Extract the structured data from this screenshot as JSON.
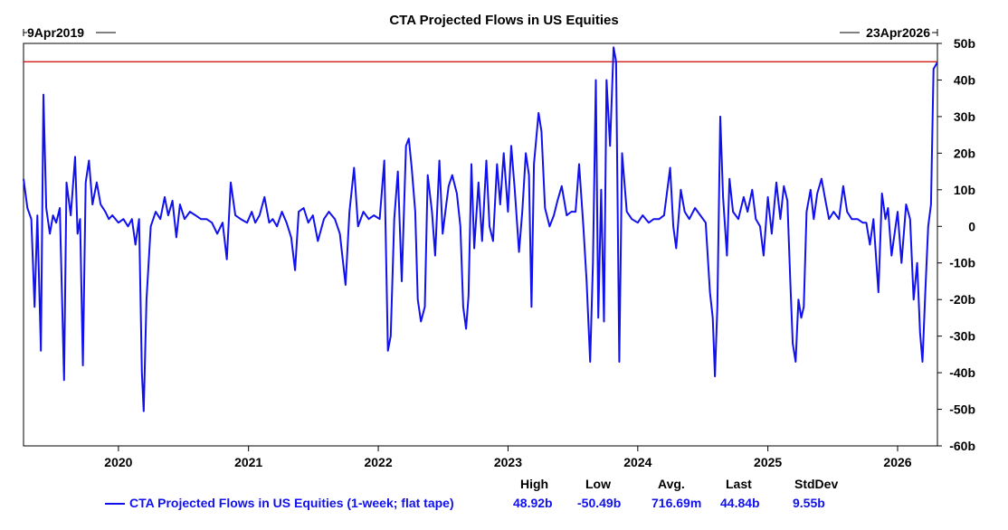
{
  "title": "CTA Projected Flows in US Equities",
  "range": {
    "start_label": "9Apr2019",
    "end_label": "23Apr2026"
  },
  "legend": {
    "label": "CTA Projected Flows in US Equities (1-week; flat tape)"
  },
  "stats": {
    "headers": [
      "High",
      "Low",
      "Avg.",
      "Last",
      "StdDev"
    ],
    "values": [
      "48.92b",
      "-50.49b",
      "716.69m",
      "44.84b",
      "9.55b"
    ]
  },
  "colors": {
    "series": "#1111ee",
    "reference_line": "#cc0000",
    "axis": "#000000"
  },
  "chart_data": {
    "type": "line",
    "title": "CTA Projected Flows in US Equities",
    "xlabel": "",
    "ylabel": "",
    "x_range": [
      "2019-04-09",
      "2026-04-23"
    ],
    "ylim": [
      -60,
      50
    ],
    "y_ticks": [
      -60,
      -50,
      -40,
      -30,
      -20,
      -10,
      0,
      10,
      20,
      30,
      40,
      50
    ],
    "y_tick_labels": [
      "-60b",
      "-50b",
      "-40b",
      "-30b",
      "-20b",
      "-10b",
      "0",
      "10b",
      "20b",
      "30b",
      "40b",
      "50b"
    ],
    "x_ticks": [
      "2020",
      "2021",
      "2022",
      "2023",
      "2024",
      "2025",
      "2026"
    ],
    "grid": false,
    "reference_line": 45,
    "series": [
      {
        "name": "CTA Projected Flows in US Equities (1-week; flat tape)",
        "values": [
          [
            "2019-04-09",
            13
          ],
          [
            "2019-04-20",
            5
          ],
          [
            "2019-05-01",
            2
          ],
          [
            "2019-05-10",
            -22
          ],
          [
            "2019-05-18",
            3
          ],
          [
            "2019-05-28",
            -34
          ],
          [
            "2019-06-04",
            36
          ],
          [
            "2019-06-12",
            5
          ],
          [
            "2019-06-22",
            -2
          ],
          [
            "2019-07-01",
            3
          ],
          [
            "2019-07-10",
            1
          ],
          [
            "2019-07-20",
            5
          ],
          [
            "2019-08-01",
            -42
          ],
          [
            "2019-08-08",
            12
          ],
          [
            "2019-08-20",
            3
          ],
          [
            "2019-09-01",
            19
          ],
          [
            "2019-09-08",
            -2
          ],
          [
            "2019-09-15",
            2
          ],
          [
            "2019-09-23",
            -38
          ],
          [
            "2019-10-01",
            12
          ],
          [
            "2019-10-10",
            18
          ],
          [
            "2019-10-20",
            6
          ],
          [
            "2019-11-01",
            12
          ],
          [
            "2019-11-12",
            6
          ],
          [
            "2019-11-25",
            4
          ],
          [
            "2019-12-05",
            2
          ],
          [
            "2019-12-15",
            3
          ],
          [
            "2020-01-01",
            1
          ],
          [
            "2020-01-15",
            2
          ],
          [
            "2020-01-28",
            0
          ],
          [
            "2020-02-08",
            2
          ],
          [
            "2020-02-18",
            -5
          ],
          [
            "2020-02-28",
            2
          ],
          [
            "2020-03-07",
            -40
          ],
          [
            "2020-03-12",
            -50.5
          ],
          [
            "2020-03-20",
            -20
          ],
          [
            "2020-04-01",
            0
          ],
          [
            "2020-04-15",
            4
          ],
          [
            "2020-04-28",
            2
          ],
          [
            "2020-05-10",
            8
          ],
          [
            "2020-05-20",
            3
          ],
          [
            "2020-06-01",
            7
          ],
          [
            "2020-06-12",
            -3
          ],
          [
            "2020-06-22",
            6
          ],
          [
            "2020-07-05",
            2
          ],
          [
            "2020-07-20",
            4
          ],
          [
            "2020-08-05",
            3
          ],
          [
            "2020-08-20",
            2
          ],
          [
            "2020-09-05",
            2
          ],
          [
            "2020-09-20",
            1
          ],
          [
            "2020-10-05",
            -2
          ],
          [
            "2020-10-20",
            1
          ],
          [
            "2020-11-01",
            -9
          ],
          [
            "2020-11-12",
            12
          ],
          [
            "2020-11-25",
            3
          ],
          [
            "2020-12-10",
            2
          ],
          [
            "2020-12-28",
            1
          ],
          [
            "2021-01-10",
            4
          ],
          [
            "2021-01-20",
            1
          ],
          [
            "2021-02-01",
            3
          ],
          [
            "2021-02-15",
            8
          ],
          [
            "2021-02-28",
            1
          ],
          [
            "2021-03-10",
            2
          ],
          [
            "2021-03-22",
            0
          ],
          [
            "2021-04-05",
            4
          ],
          [
            "2021-04-18",
            1
          ],
          [
            "2021-05-01",
            -3
          ],
          [
            "2021-05-12",
            -12
          ],
          [
            "2021-05-22",
            4
          ],
          [
            "2021-06-05",
            5
          ],
          [
            "2021-06-18",
            1
          ],
          [
            "2021-07-01",
            3
          ],
          [
            "2021-07-15",
            -4
          ],
          [
            "2021-08-01",
            2
          ],
          [
            "2021-08-15",
            4
          ],
          [
            "2021-09-01",
            2
          ],
          [
            "2021-09-15",
            -2
          ],
          [
            "2021-10-01",
            -16
          ],
          [
            "2021-10-12",
            4
          ],
          [
            "2021-10-25",
            16
          ],
          [
            "2021-11-05",
            0
          ],
          [
            "2021-11-20",
            4
          ],
          [
            "2021-12-05",
            2
          ],
          [
            "2021-12-20",
            3
          ],
          [
            "2022-01-05",
            2
          ],
          [
            "2022-01-18",
            18
          ],
          [
            "2022-01-28",
            -34
          ],
          [
            "2022-02-05",
            -30
          ],
          [
            "2022-02-15",
            2
          ],
          [
            "2022-02-25",
            15
          ],
          [
            "2022-03-08",
            -15
          ],
          [
            "2022-03-20",
            22
          ],
          [
            "2022-03-28",
            24
          ],
          [
            "2022-04-05",
            16
          ],
          [
            "2022-04-15",
            4
          ],
          [
            "2022-04-22",
            -20
          ],
          [
            "2022-05-01",
            -26
          ],
          [
            "2022-05-12",
            -22
          ],
          [
            "2022-05-20",
            14
          ],
          [
            "2022-06-01",
            4
          ],
          [
            "2022-06-10",
            -8
          ],
          [
            "2022-06-22",
            18
          ],
          [
            "2022-07-01",
            -2
          ],
          [
            "2022-07-10",
            5
          ],
          [
            "2022-07-18",
            11
          ],
          [
            "2022-07-28",
            14
          ],
          [
            "2022-08-10",
            9
          ],
          [
            "2022-08-20",
            0
          ],
          [
            "2022-08-28",
            -22
          ],
          [
            "2022-09-05",
            -28
          ],
          [
            "2022-09-12",
            -19
          ],
          [
            "2022-09-20",
            17
          ],
          [
            "2022-09-28",
            -6
          ],
          [
            "2022-10-10",
            12
          ],
          [
            "2022-10-20",
            -4
          ],
          [
            "2022-11-01",
            18
          ],
          [
            "2022-11-10",
            0
          ],
          [
            "2022-11-20",
            -4
          ],
          [
            "2022-12-01",
            17
          ],
          [
            "2022-12-10",
            6
          ],
          [
            "2022-12-20",
            20
          ],
          [
            "2023-01-01",
            4
          ],
          [
            "2023-01-10",
            22
          ],
          [
            "2023-01-20",
            10
          ],
          [
            "2023-02-01",
            -7
          ],
          [
            "2023-02-10",
            4
          ],
          [
            "2023-02-20",
            20
          ],
          [
            "2023-03-01",
            14
          ],
          [
            "2023-03-08",
            -22
          ],
          [
            "2023-03-15",
            17
          ],
          [
            "2023-03-28",
            31
          ],
          [
            "2023-04-05",
            26
          ],
          [
            "2023-04-15",
            5
          ],
          [
            "2023-04-28",
            0
          ],
          [
            "2023-05-10",
            3
          ],
          [
            "2023-05-20",
            7
          ],
          [
            "2023-06-01",
            11
          ],
          [
            "2023-06-15",
            3
          ],
          [
            "2023-06-28",
            4
          ],
          [
            "2023-07-10",
            4
          ],
          [
            "2023-07-20",
            17
          ],
          [
            "2023-08-01",
            0
          ],
          [
            "2023-08-10",
            -15
          ],
          [
            "2023-08-20",
            -37
          ],
          [
            "2023-08-28",
            -10
          ],
          [
            "2023-09-05",
            40
          ],
          [
            "2023-09-12",
            -25
          ],
          [
            "2023-09-20",
            10
          ],
          [
            "2023-09-28",
            -26
          ],
          [
            "2023-10-05",
            40
          ],
          [
            "2023-10-15",
            22
          ],
          [
            "2023-10-25",
            48.9
          ],
          [
            "2023-11-01",
            45
          ],
          [
            "2023-11-10",
            -37
          ],
          [
            "2023-11-18",
            20
          ],
          [
            "2023-12-01",
            4
          ],
          [
            "2023-12-15",
            2
          ],
          [
            "2024-01-01",
            1
          ],
          [
            "2024-01-15",
            3
          ],
          [
            "2024-02-01",
            1
          ],
          [
            "2024-02-15",
            2
          ],
          [
            "2024-03-01",
            2
          ],
          [
            "2024-03-15",
            3
          ],
          [
            "2024-04-01",
            16
          ],
          [
            "2024-04-10",
            0
          ],
          [
            "2024-04-18",
            -6
          ],
          [
            "2024-05-01",
            10
          ],
          [
            "2024-05-12",
            4
          ],
          [
            "2024-05-25",
            2
          ],
          [
            "2024-06-10",
            5
          ],
          [
            "2024-06-25",
            3
          ],
          [
            "2024-07-10",
            1
          ],
          [
            "2024-07-22",
            -18
          ],
          [
            "2024-07-30",
            -25
          ],
          [
            "2024-08-05",
            -41
          ],
          [
            "2024-08-12",
            -22
          ],
          [
            "2024-08-20",
            30
          ],
          [
            "2024-08-28",
            8
          ],
          [
            "2024-09-08",
            -8
          ],
          [
            "2024-09-15",
            13
          ],
          [
            "2024-09-25",
            4
          ],
          [
            "2024-10-10",
            2
          ],
          [
            "2024-10-25",
            8
          ],
          [
            "2024-11-05",
            4
          ],
          [
            "2024-11-18",
            10
          ],
          [
            "2024-11-28",
            2
          ],
          [
            "2024-12-10",
            0
          ],
          [
            "2024-12-20",
            -8
          ],
          [
            "2025-01-01",
            8
          ],
          [
            "2025-01-12",
            -2
          ],
          [
            "2025-01-25",
            12
          ],
          [
            "2025-02-05",
            2
          ],
          [
            "2025-02-15",
            11
          ],
          [
            "2025-02-25",
            7
          ],
          [
            "2025-03-05",
            -15
          ],
          [
            "2025-03-12",
            -32
          ],
          [
            "2025-03-20",
            -37
          ],
          [
            "2025-03-28",
            -20
          ],
          [
            "2025-04-05",
            -25
          ],
          [
            "2025-04-12",
            -22
          ],
          [
            "2025-04-20",
            4
          ],
          [
            "2025-05-01",
            10
          ],
          [
            "2025-05-10",
            2
          ],
          [
            "2025-05-20",
            9
          ],
          [
            "2025-06-01",
            13
          ],
          [
            "2025-06-12",
            7
          ],
          [
            "2025-06-22",
            2
          ],
          [
            "2025-07-05",
            4
          ],
          [
            "2025-07-20",
            2
          ],
          [
            "2025-08-01",
            11
          ],
          [
            "2025-08-12",
            4
          ],
          [
            "2025-08-25",
            2
          ],
          [
            "2025-09-10",
            2
          ],
          [
            "2025-09-25",
            1
          ],
          [
            "2025-10-05",
            1
          ],
          [
            "2025-10-15",
            -5
          ],
          [
            "2025-10-25",
            2
          ],
          [
            "2025-11-08",
            -18
          ],
          [
            "2025-11-18",
            9
          ],
          [
            "2025-11-28",
            2
          ],
          [
            "2025-12-05",
            5
          ],
          [
            "2025-12-15",
            -8
          ],
          [
            "2026-01-01",
            4
          ],
          [
            "2026-01-12",
            -10
          ],
          [
            "2026-01-25",
            6
          ],
          [
            "2026-02-05",
            2
          ],
          [
            "2026-02-15",
            -20
          ],
          [
            "2026-02-25",
            -10
          ],
          [
            "2026-03-05",
            -29
          ],
          [
            "2026-03-12",
            -37
          ],
          [
            "2026-03-20",
            -18
          ],
          [
            "2026-03-28",
            0
          ],
          [
            "2026-04-05",
            6
          ],
          [
            "2026-04-12",
            43
          ],
          [
            "2026-04-23",
            44.84
          ]
        ]
      }
    ]
  }
}
